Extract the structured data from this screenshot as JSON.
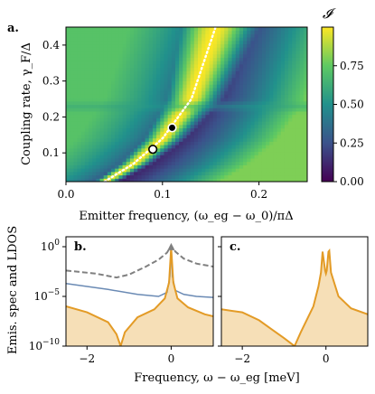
{
  "chart_data": [
    {
      "panel": "a.",
      "type": "heatmap",
      "xlabel": "Emitter frequency, (ω_eg − ω_0)/πΔ",
      "ylabel": "Coupling rate, γ_F/Δ",
      "xlim": [
        0.0,
        0.25
      ],
      "ylim": [
        0.02,
        0.45
      ],
      "xticks": [
        "0.0",
        "0.1",
        "0.2"
      ],
      "yticks": [
        "0.1",
        "0.2",
        "0.3",
        "0.4"
      ],
      "colorbar": {
        "label": "𝓘",
        "range": [
          0.0,
          1.0
        ],
        "ticks": [
          "0.00",
          "0.25",
          "0.50",
          "0.75"
        ],
        "colormap": [
          "#440154",
          "#3b528b",
          "#21918c",
          "#5ec962",
          "#fde725"
        ]
      },
      "ridge_dotted_line": {
        "x": [
          0.04,
          0.07,
          0.1,
          0.13,
          0.155
        ],
        "y": [
          0.02,
          0.07,
          0.14,
          0.25,
          0.45
        ],
        "color": "#ffffff"
      },
      "avoided_crossing_band_y": 0.23,
      "markers": [
        {
          "x": 0.09,
          "y": 0.11,
          "fill": "#ffffff",
          "edge": "#000000"
        },
        {
          "x": 0.11,
          "y": 0.17,
          "fill": "#000000",
          "edge": "#ffffff"
        }
      ]
    },
    {
      "panel": "b.",
      "type": "line",
      "ylabel": "Emis. spec and LDOS",
      "xlim": [
        -2.5,
        1.0
      ],
      "ylim_log10": [
        -10,
        1
      ],
      "yscale": "log",
      "xticks": [
        "−2",
        "0"
      ],
      "yticks": [
        "10^0",
        "10^−5",
        "10^−10"
      ],
      "series": [
        {
          "color": "#e39b26",
          "fill": "#f6dfb7",
          "x": [
            -2.5,
            -2.0,
            -1.5,
            -1.3,
            -1.2,
            -1.1,
            -0.8,
            -0.4,
            -0.15,
            -0.05,
            0.0,
            0.05,
            0.15,
            0.4,
            0.8,
            1.0
          ],
          "log10_y": [
            -6.0,
            -6.6,
            -7.6,
            -8.8,
            -10.0,
            -8.6,
            -7.1,
            -6.3,
            -5.2,
            -3.6,
            -0.1,
            -3.6,
            -5.2,
            -6.1,
            -6.8,
            -7.0
          ]
        },
        {
          "color": "#6a8ab4",
          "x": [
            -2.5,
            -1.5,
            -0.8,
            -0.3,
            -0.1,
            -0.03,
            0.0,
            0.03,
            0.1,
            0.3,
            0.6,
            1.0
          ],
          "log10_y": [
            -3.7,
            -4.3,
            -4.8,
            -5.0,
            -4.6,
            -3.0,
            0.1,
            -3.0,
            -4.4,
            -4.8,
            -5.0,
            -5.1
          ]
        },
        {
          "color": "#808080",
          "dashed": true,
          "x": [
            -2.5,
            -1.8,
            -1.3,
            -1.0,
            -0.6,
            -0.3,
            -0.1,
            0.0,
            0.1,
            0.3,
            0.6,
            1.0
          ],
          "log10_y": [
            -2.4,
            -2.7,
            -3.1,
            -2.8,
            -2.0,
            -1.3,
            -0.6,
            0.1,
            -0.5,
            -1.2,
            -1.7,
            -2.0
          ]
        }
      ],
      "peak_marker": {
        "x": 0.0,
        "log10_y": 0.1
      }
    },
    {
      "panel": "c.",
      "type": "line",
      "xlabel": "Frequency, ω − ω_eg [meV]",
      "xlim": [
        -2.5,
        1.0
      ],
      "ylim_log10": [
        -10,
        1
      ],
      "yscale": "log",
      "xticks": [
        "−2",
        "0"
      ],
      "series": [
        {
          "color": "#e39b26",
          "fill": "#f6dfb7",
          "x": [
            -2.5,
            -2.0,
            -1.6,
            -1.3,
            -1.0,
            -0.75,
            -0.6,
            -0.3,
            -0.18,
            -0.12,
            -0.08,
            -0.02,
            0.0,
            0.02,
            0.06,
            0.08,
            0.12,
            0.3,
            0.6,
            1.0
          ],
          "log10_y": [
            -6.3,
            -6.6,
            -7.4,
            -8.3,
            -9.2,
            -10.0,
            -8.6,
            -6.0,
            -4.0,
            -2.6,
            -0.5,
            -2.4,
            -2.7,
            -2.4,
            -0.5,
            -0.4,
            -2.6,
            -5.0,
            -6.2,
            -6.8
          ]
        }
      ]
    }
  ]
}
